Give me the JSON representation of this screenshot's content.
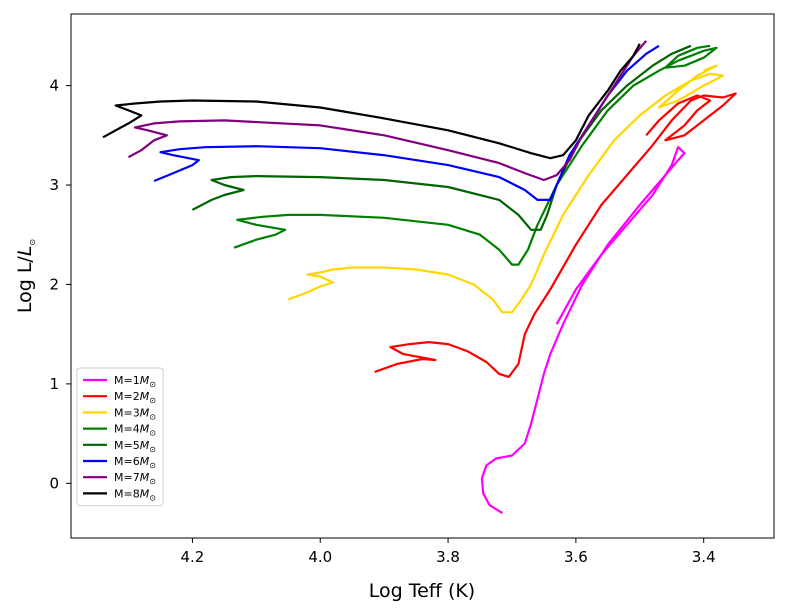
{
  "chart_data": {
    "type": "line",
    "title": "",
    "xlabel": "Log Teff (K)",
    "ylabel_main": "Log L/",
    "ylabel_sub_symbol": "L",
    "ylabel_sub": "⊙",
    "xlim": [
      4.39,
      3.29
    ],
    "ylim": [
      -0.55,
      4.72
    ],
    "x_inverted": true,
    "x_ticks": [
      4.2,
      4.0,
      3.8,
      3.6,
      3.4
    ],
    "x_tick_labels": [
      "4.2",
      "4.0",
      "3.8",
      "3.6",
      "3.4"
    ],
    "y_ticks": [
      0,
      1,
      2,
      3,
      4
    ],
    "y_tick_labels": [
      "0",
      "1",
      "2",
      "3",
      "4"
    ],
    "legend_position": "lower-left",
    "series": [
      {
        "name": "M=1M",
        "mass_symbol": "M",
        "mass_sub": "⊙",
        "color": "#ff00ff",
        "points": [
          [
            3.715,
            -0.3
          ],
          [
            3.735,
            -0.22
          ],
          [
            3.745,
            -0.1
          ],
          [
            3.747,
            0.05
          ],
          [
            3.74,
            0.18
          ],
          [
            3.725,
            0.25
          ],
          [
            3.7,
            0.28
          ],
          [
            3.68,
            0.4
          ],
          [
            3.67,
            0.6
          ],
          [
            3.66,
            0.85
          ],
          [
            3.65,
            1.1
          ],
          [
            3.64,
            1.3
          ],
          [
            3.62,
            1.6
          ],
          [
            3.59,
            2.0
          ],
          [
            3.55,
            2.4
          ],
          [
            3.5,
            2.8
          ],
          [
            3.46,
            3.1
          ],
          [
            3.44,
            3.25
          ],
          [
            3.43,
            3.32
          ],
          [
            3.44,
            3.38
          ],
          [
            3.45,
            3.2
          ],
          [
            3.48,
            2.9
          ],
          [
            3.52,
            2.6
          ],
          [
            3.56,
            2.3
          ],
          [
            3.6,
            1.95
          ],
          [
            3.63,
            1.6
          ]
        ]
      },
      {
        "name": "M=2M",
        "mass_symbol": "M",
        "mass_sub": "⊙",
        "color": "#ff0000",
        "points": [
          [
            3.915,
            1.12
          ],
          [
            3.88,
            1.2
          ],
          [
            3.84,
            1.25
          ],
          [
            3.82,
            1.24
          ],
          [
            3.87,
            1.3
          ],
          [
            3.89,
            1.37
          ],
          [
            3.86,
            1.4
          ],
          [
            3.83,
            1.42
          ],
          [
            3.8,
            1.4
          ],
          [
            3.77,
            1.33
          ],
          [
            3.74,
            1.22
          ],
          [
            3.72,
            1.1
          ],
          [
            3.705,
            1.07
          ],
          [
            3.69,
            1.2
          ],
          [
            3.68,
            1.5
          ],
          [
            3.665,
            1.7
          ],
          [
            3.64,
            1.95
          ],
          [
            3.6,
            2.4
          ],
          [
            3.56,
            2.8
          ],
          [
            3.52,
            3.1
          ],
          [
            3.48,
            3.4
          ],
          [
            3.45,
            3.65
          ],
          [
            3.42,
            3.85
          ],
          [
            3.4,
            3.9
          ],
          [
            3.37,
            3.88
          ],
          [
            3.35,
            3.92
          ],
          [
            3.37,
            3.8
          ],
          [
            3.4,
            3.65
          ],
          [
            3.43,
            3.5
          ],
          [
            3.46,
            3.45
          ],
          [
            3.43,
            3.6
          ],
          [
            3.41,
            3.75
          ],
          [
            3.39,
            3.85
          ],
          [
            3.41,
            3.9
          ],
          [
            3.44,
            3.82
          ],
          [
            3.47,
            3.65
          ],
          [
            3.49,
            3.5
          ]
        ]
      },
      {
        "name": "M=3M",
        "mass_symbol": "M",
        "mass_sub": "⊙",
        "color": "#ffd700",
        "points": [
          [
            4.05,
            1.85
          ],
          [
            4.02,
            1.92
          ],
          [
            4.0,
            1.98
          ],
          [
            3.98,
            2.02
          ],
          [
            4.0,
            2.08
          ],
          [
            4.02,
            2.1
          ],
          [
            4.0,
            2.12
          ],
          [
            3.98,
            2.15
          ],
          [
            3.95,
            2.17
          ],
          [
            3.9,
            2.17
          ],
          [
            3.85,
            2.15
          ],
          [
            3.8,
            2.1
          ],
          [
            3.76,
            2.0
          ],
          [
            3.73,
            1.85
          ],
          [
            3.715,
            1.72
          ],
          [
            3.7,
            1.72
          ],
          [
            3.685,
            1.85
          ],
          [
            3.67,
            2.0
          ],
          [
            3.65,
            2.3
          ],
          [
            3.62,
            2.7
          ],
          [
            3.58,
            3.1
          ],
          [
            3.54,
            3.45
          ],
          [
            3.5,
            3.7
          ],
          [
            3.46,
            3.9
          ],
          [
            3.42,
            4.05
          ],
          [
            3.39,
            4.12
          ],
          [
            3.37,
            4.1
          ],
          [
            3.4,
            4.0
          ],
          [
            3.44,
            3.85
          ],
          [
            3.47,
            3.78
          ],
          [
            3.44,
            3.95
          ],
          [
            3.41,
            4.1
          ],
          [
            3.38,
            4.2
          ],
          [
            3.4,
            4.15
          ]
        ]
      },
      {
        "name": "M=4M",
        "mass_symbol": "M",
        "mass_sub": "⊙",
        "color": "#008000",
        "points": [
          [
            4.135,
            2.37
          ],
          [
            4.1,
            2.45
          ],
          [
            4.07,
            2.5
          ],
          [
            4.055,
            2.55
          ],
          [
            4.1,
            2.6
          ],
          [
            4.13,
            2.65
          ],
          [
            4.09,
            2.68
          ],
          [
            4.05,
            2.7
          ],
          [
            4.0,
            2.7
          ],
          [
            3.9,
            2.67
          ],
          [
            3.8,
            2.6
          ],
          [
            3.75,
            2.5
          ],
          [
            3.72,
            2.35
          ],
          [
            3.7,
            2.2
          ],
          [
            3.69,
            2.2
          ],
          [
            3.675,
            2.35
          ],
          [
            3.66,
            2.6
          ],
          [
            3.63,
            3.0
          ],
          [
            3.59,
            3.4
          ],
          [
            3.55,
            3.75
          ],
          [
            3.51,
            4.0
          ],
          [
            3.47,
            4.15
          ],
          [
            3.44,
            4.25
          ],
          [
            3.42,
            4.3
          ],
          [
            3.4,
            4.35
          ],
          [
            3.38,
            4.38
          ],
          [
            3.4,
            4.28
          ],
          [
            3.43,
            4.2
          ],
          [
            3.46,
            4.18
          ],
          [
            3.44,
            4.3
          ],
          [
            3.41,
            4.38
          ],
          [
            3.39,
            4.4
          ]
        ]
      },
      {
        "name": "M=5M",
        "mass_symbol": "M",
        "mass_sub": "⊙",
        "color": "#006400",
        "points": [
          [
            4.2,
            2.75
          ],
          [
            4.17,
            2.85
          ],
          [
            4.15,
            2.9
          ],
          [
            4.12,
            2.95
          ],
          [
            4.15,
            3.0
          ],
          [
            4.17,
            3.05
          ],
          [
            4.14,
            3.08
          ],
          [
            4.1,
            3.09
          ],
          [
            4.0,
            3.08
          ],
          [
            3.9,
            3.05
          ],
          [
            3.8,
            2.98
          ],
          [
            3.72,
            2.85
          ],
          [
            3.69,
            2.7
          ],
          [
            3.67,
            2.55
          ],
          [
            3.655,
            2.55
          ],
          [
            3.645,
            2.7
          ],
          [
            3.63,
            3.0
          ],
          [
            3.6,
            3.4
          ],
          [
            3.56,
            3.75
          ],
          [
            3.52,
            4.0
          ],
          [
            3.48,
            4.2
          ],
          [
            3.45,
            4.32
          ],
          [
            3.42,
            4.4
          ]
        ]
      },
      {
        "name": "M=6M",
        "mass_symbol": "M",
        "mass_sub": "⊙",
        "color": "#0000ff",
        "points": [
          [
            4.26,
            3.04
          ],
          [
            4.23,
            3.12
          ],
          [
            4.2,
            3.2
          ],
          [
            4.19,
            3.25
          ],
          [
            4.23,
            3.3
          ],
          [
            4.25,
            3.33
          ],
          [
            4.22,
            3.36
          ],
          [
            4.18,
            3.38
          ],
          [
            4.1,
            3.39
          ],
          [
            4.0,
            3.37
          ],
          [
            3.9,
            3.3
          ],
          [
            3.8,
            3.2
          ],
          [
            3.72,
            3.08
          ],
          [
            3.68,
            2.95
          ],
          [
            3.66,
            2.85
          ],
          [
            3.64,
            2.85
          ],
          [
            3.63,
            3.0
          ],
          [
            3.61,
            3.3
          ],
          [
            3.58,
            3.6
          ],
          [
            3.55,
            3.9
          ],
          [
            3.52,
            4.15
          ],
          [
            3.49,
            4.32
          ],
          [
            3.47,
            4.4
          ]
        ]
      },
      {
        "name": "M=7M",
        "mass_symbol": "M",
        "mass_sub": "⊙",
        "color": "#800080",
        "points": [
          [
            4.3,
            3.28
          ],
          [
            4.28,
            3.35
          ],
          [
            4.26,
            3.45
          ],
          [
            4.24,
            3.5
          ],
          [
            4.27,
            3.55
          ],
          [
            4.29,
            3.58
          ],
          [
            4.26,
            3.62
          ],
          [
            4.22,
            3.64
          ],
          [
            4.15,
            3.65
          ],
          [
            4.0,
            3.6
          ],
          [
            3.9,
            3.5
          ],
          [
            3.8,
            3.35
          ],
          [
            3.72,
            3.22
          ],
          [
            3.68,
            3.12
          ],
          [
            3.65,
            3.05
          ],
          [
            3.63,
            3.1
          ],
          [
            3.61,
            3.25
          ],
          [
            3.59,
            3.5
          ],
          [
            3.56,
            3.8
          ],
          [
            3.53,
            4.1
          ],
          [
            3.51,
            4.3
          ],
          [
            3.49,
            4.45
          ]
        ]
      },
      {
        "name": "M=8M",
        "mass_symbol": "M",
        "mass_sub": "⊙",
        "color": "#000000",
        "points": [
          [
            4.34,
            3.48
          ],
          [
            4.32,
            3.55
          ],
          [
            4.3,
            3.62
          ],
          [
            4.28,
            3.7
          ],
          [
            4.3,
            3.75
          ],
          [
            4.32,
            3.8
          ],
          [
            4.29,
            3.82
          ],
          [
            4.25,
            3.84
          ],
          [
            4.2,
            3.85
          ],
          [
            4.1,
            3.84
          ],
          [
            4.0,
            3.78
          ],
          [
            3.9,
            3.67
          ],
          [
            3.8,
            3.55
          ],
          [
            3.72,
            3.42
          ],
          [
            3.67,
            3.32
          ],
          [
            3.64,
            3.27
          ],
          [
            3.62,
            3.3
          ],
          [
            3.6,
            3.45
          ],
          [
            3.58,
            3.7
          ],
          [
            3.55,
            3.95
          ],
          [
            3.53,
            4.15
          ],
          [
            3.51,
            4.3
          ],
          [
            3.5,
            4.42
          ]
        ]
      }
    ]
  }
}
